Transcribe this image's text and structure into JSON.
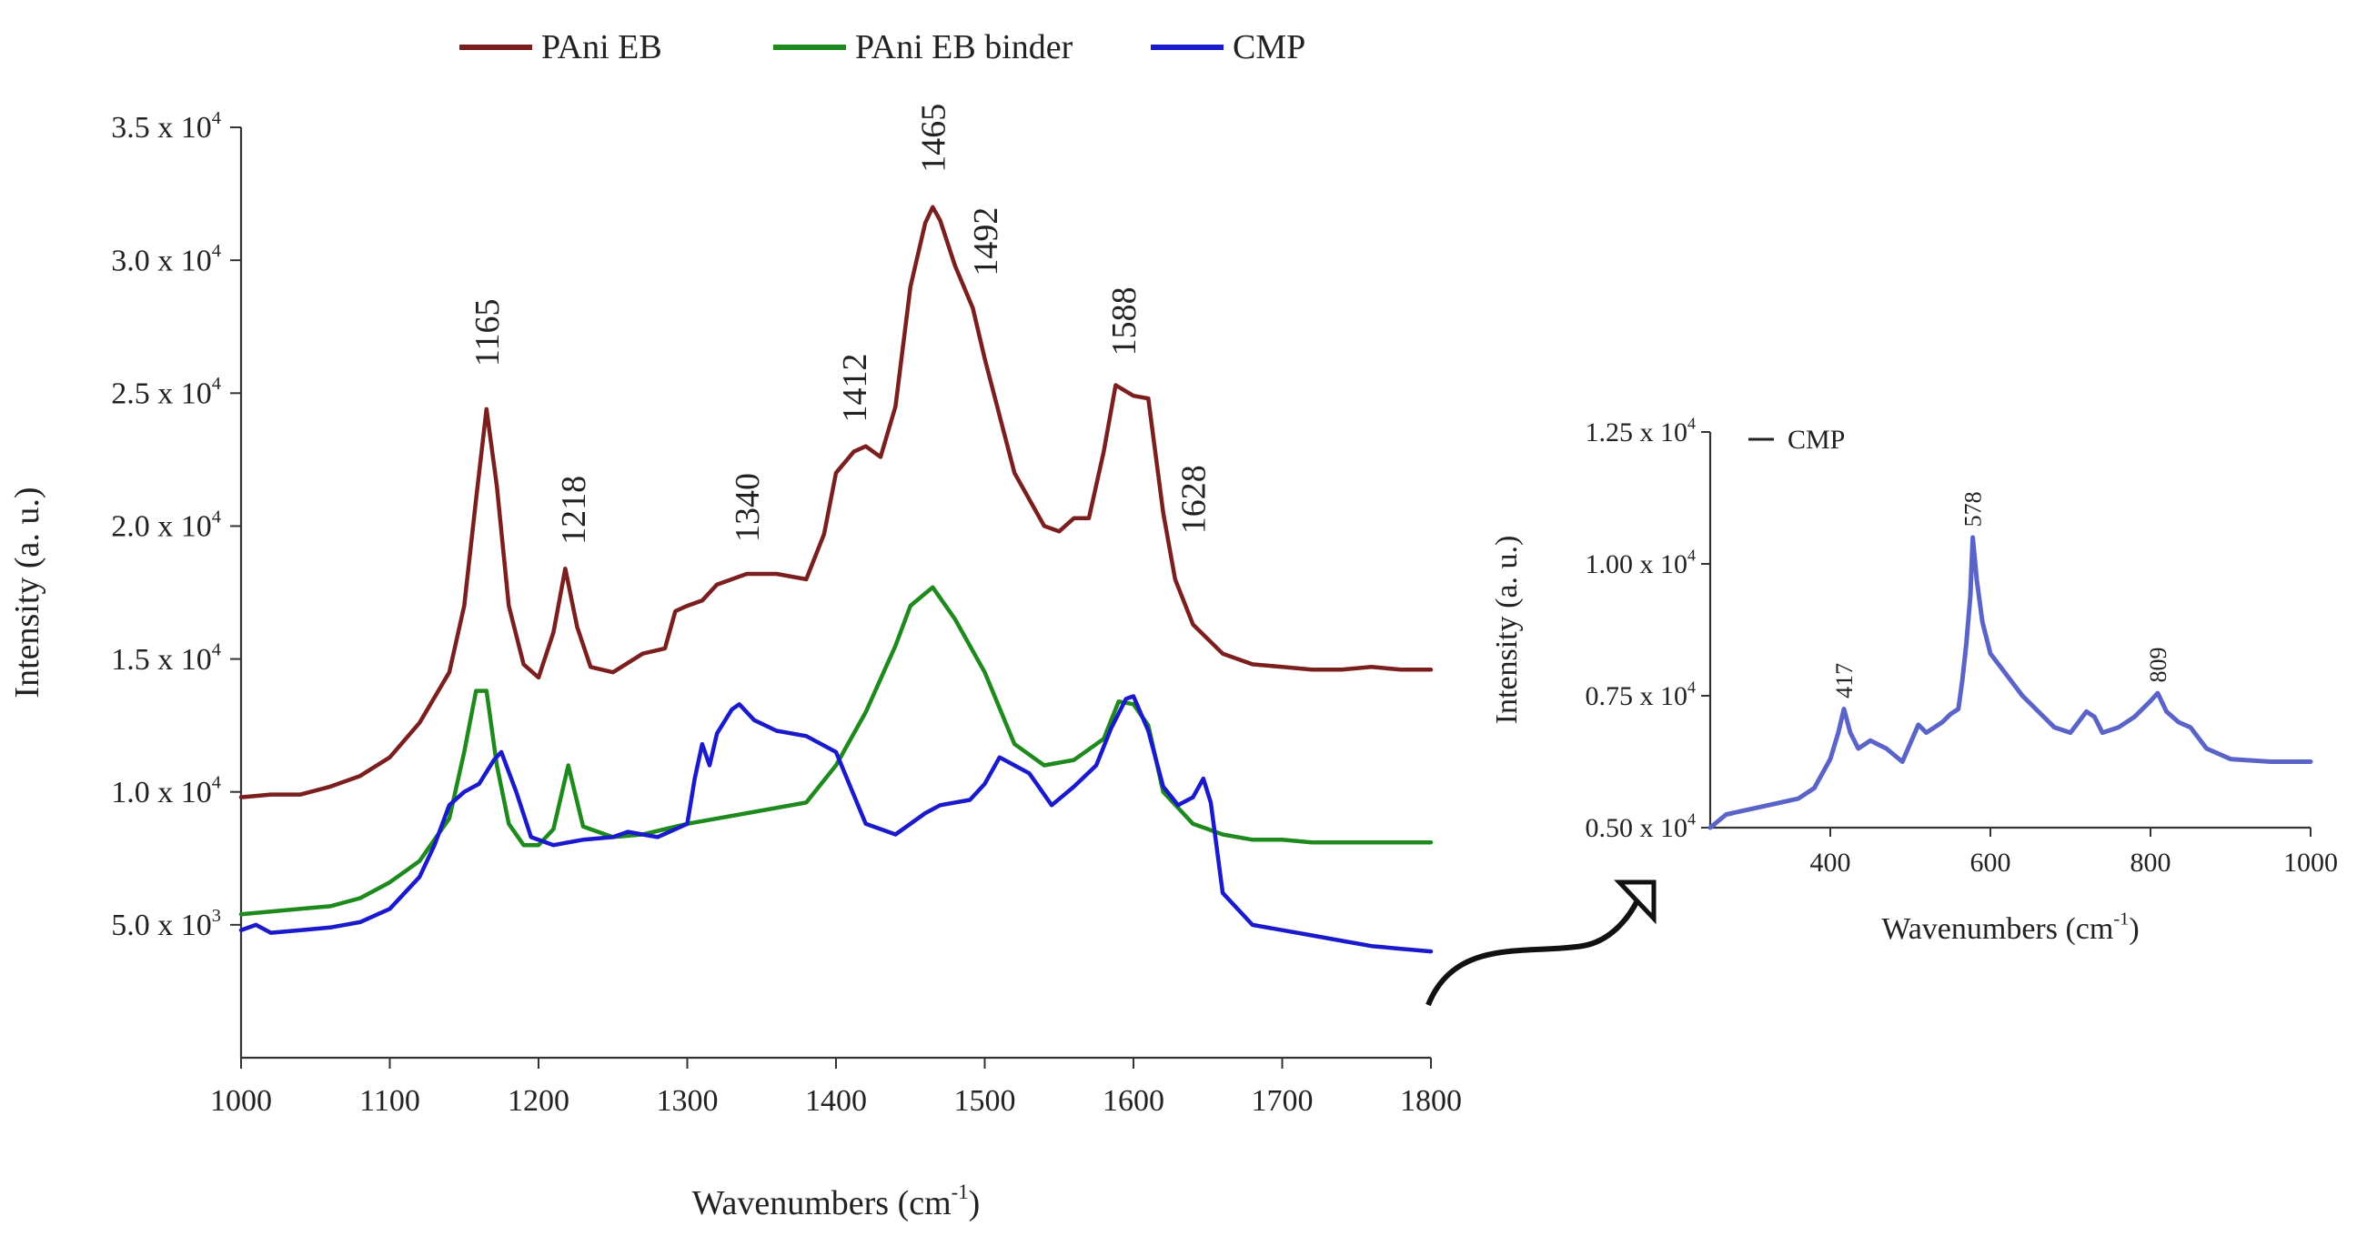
{
  "chart_data": [
    {
      "type": "line",
      "xlabel": "Wavenumbers (cm",
      "xlabel_sup": "-1",
      "xlabel_suffix": ")",
      "ylabel": "Intensity (a. u.)",
      "xlim": [
        1000,
        1800
      ],
      "ylim": [
        0,
        35000
      ],
      "xticks": [
        1000,
        1100,
        1200,
        1300,
        1400,
        1500,
        1600,
        1700,
        1800
      ],
      "yticks": [
        {
          "value": 5000,
          "mant": "5.0 x 10",
          "exp": "3"
        },
        {
          "value": 10000,
          "mant": "1.0 x 10",
          "exp": "4"
        },
        {
          "value": 15000,
          "mant": "1.5 x 10",
          "exp": "4"
        },
        {
          "value": 20000,
          "mant": "2.0 x 10",
          "exp": "4"
        },
        {
          "value": 25000,
          "mant": "2.5 x 10",
          "exp": "4"
        },
        {
          "value": 30000,
          "mant": "3.0 x 10",
          "exp": "4"
        },
        {
          "value": 35000,
          "mant": "3.5 x 10",
          "exp": "4"
        }
      ],
      "legend_position": "top",
      "series": [
        {
          "name": "PAni EB",
          "color": "#7b1e1e",
          "x": [
            1000,
            1020,
            1040,
            1060,
            1080,
            1100,
            1120,
            1140,
            1150,
            1158,
            1165,
            1172,
            1180,
            1190,
            1200,
            1210,
            1218,
            1226,
            1235,
            1250,
            1270,
            1285,
            1292,
            1300,
            1310,
            1320,
            1340,
            1360,
            1380,
            1392,
            1400,
            1412,
            1420,
            1430,
            1440,
            1450,
            1460,
            1465,
            1470,
            1480,
            1492,
            1500,
            1520,
            1540,
            1550,
            1560,
            1570,
            1580,
            1588,
            1600,
            1610,
            1620,
            1628,
            1640,
            1660,
            1680,
            1700,
            1720,
            1740,
            1760,
            1780,
            1800
          ],
          "y": [
            9800,
            9900,
            9900,
            10200,
            10600,
            11300,
            12600,
            14500,
            17000,
            21000,
            24400,
            21500,
            17000,
            14800,
            14300,
            16000,
            18400,
            16200,
            14700,
            14500,
            15200,
            15400,
            16800,
            17000,
            17200,
            17800,
            18200,
            18200,
            18000,
            19700,
            22000,
            22800,
            23000,
            22600,
            24500,
            29000,
            31400,
            32000,
            31500,
            29800,
            28200,
            26300,
            22000,
            20000,
            19800,
            20300,
            20300,
            22800,
            25300,
            24900,
            24800,
            20500,
            18000,
            16300,
            15200,
            14800,
            14700,
            14600,
            14600,
            14700,
            14600,
            14600
          ]
        },
        {
          "name": "PAni EB binder",
          "color": "#1e8a1e",
          "x": [
            1000,
            1020,
            1040,
            1060,
            1080,
            1100,
            1120,
            1140,
            1150,
            1158,
            1165,
            1172,
            1180,
            1190,
            1200,
            1210,
            1220,
            1230,
            1240,
            1250,
            1270,
            1300,
            1340,
            1380,
            1400,
            1420,
            1440,
            1450,
            1465,
            1480,
            1500,
            1520,
            1540,
            1560,
            1580,
            1590,
            1600,
            1610,
            1620,
            1640,
            1660,
            1680,
            1700,
            1720,
            1740,
            1760,
            1780,
            1800
          ],
          "y": [
            5400,
            5500,
            5600,
            5700,
            6000,
            6600,
            7400,
            9000,
            11500,
            13800,
            13800,
            11000,
            8800,
            8000,
            8000,
            8600,
            11000,
            8700,
            8500,
            8300,
            8400,
            8800,
            9200,
            9600,
            11000,
            13000,
            15500,
            17000,
            17700,
            16500,
            14500,
            11800,
            11000,
            11200,
            12000,
            13400,
            13300,
            12500,
            10000,
            8800,
            8400,
            8200,
            8200,
            8100,
            8100,
            8100,
            8100,
            8100
          ]
        },
        {
          "name": "CMP",
          "color": "#1a1acc",
          "x": [
            1000,
            1010,
            1020,
            1040,
            1060,
            1080,
            1100,
            1120,
            1130,
            1140,
            1150,
            1160,
            1170,
            1175,
            1185,
            1195,
            1210,
            1230,
            1250,
            1260,
            1280,
            1300,
            1305,
            1310,
            1315,
            1320,
            1330,
            1335,
            1345,
            1360,
            1380,
            1400,
            1420,
            1440,
            1460,
            1470,
            1490,
            1500,
            1510,
            1520,
            1530,
            1545,
            1560,
            1575,
            1585,
            1595,
            1600,
            1610,
            1620,
            1630,
            1640,
            1647,
            1652,
            1660,
            1680,
            1700,
            1720,
            1740,
            1760,
            1780,
            1800
          ],
          "y": [
            4800,
            5000,
            4700,
            4800,
            4900,
            5100,
            5600,
            6800,
            8000,
            9500,
            10000,
            10300,
            11200,
            11500,
            10000,
            8300,
            8000,
            8200,
            8300,
            8500,
            8300,
            8800,
            10500,
            11800,
            11000,
            12200,
            13100,
            13300,
            12700,
            12300,
            12100,
            11500,
            8800,
            8400,
            9200,
            9500,
            9700,
            10300,
            11300,
            11000,
            10700,
            9500,
            10200,
            11000,
            12400,
            13500,
            13600,
            12300,
            10200,
            9500,
            9800,
            10500,
            9600,
            6200,
            5000,
            4800,
            4600,
            4400,
            4200,
            4100,
            4000
          ]
        }
      ],
      "annotations": [
        {
          "text": "1165",
          "x": 1165,
          "y": 26000
        },
        {
          "text": "1218",
          "x": 1223,
          "y": 19300
        },
        {
          "text": "1340",
          "x": 1340,
          "y": 19400
        },
        {
          "text": "1412",
          "x": 1412,
          "y": 23900
        },
        {
          "text": "1465",
          "x": 1465,
          "y": 33300
        },
        {
          "text": "1492",
          "x": 1500,
          "y": 29400
        },
        {
          "text": "1588",
          "x": 1593,
          "y": 26400
        },
        {
          "text": "1628",
          "x": 1640,
          "y": 19700
        }
      ]
    },
    {
      "type": "line",
      "xlabel": "Wavenumbers (cm",
      "xlabel_sup": "-1",
      "xlabel_suffix": ")",
      "ylabel": "Intensity (a. u.)",
      "xlim": [
        250,
        1000
      ],
      "ylim": [
        5000,
        12500
      ],
      "xticks": [
        400,
        600,
        800,
        1000
      ],
      "yticks": [
        {
          "value": 5000,
          "mant": "0.50 x 10",
          "exp": "4"
        },
        {
          "value": 7500,
          "mant": "0.75 x 10",
          "exp": "4"
        },
        {
          "value": 10000,
          "mant": "1.00 x 10",
          "exp": "4"
        },
        {
          "value": 12500,
          "mant": "1.25 x 10",
          "exp": "4"
        }
      ],
      "legend_position": "top-left",
      "series": [
        {
          "name": "CMP",
          "color": "#5a64c8",
          "x": [
            250,
            270,
            300,
            330,
            360,
            380,
            400,
            410,
            417,
            425,
            435,
            450,
            470,
            490,
            500,
            510,
            520,
            530,
            540,
            550,
            560,
            565,
            570,
            575,
            578,
            583,
            590,
            600,
            620,
            640,
            660,
            680,
            700,
            720,
            730,
            740,
            760,
            780,
            800,
            809,
            820,
            835,
            850,
            870,
            900,
            950,
            1000
          ],
          "y": [
            5000,
            5250,
            5350,
            5450,
            5550,
            5750,
            6300,
            6800,
            7250,
            6800,
            6500,
            6650,
            6500,
            6250,
            6600,
            6950,
            6800,
            6900,
            7000,
            7150,
            7250,
            7800,
            8500,
            9400,
            10500,
            9700,
            8900,
            8300,
            7900,
            7500,
            7200,
            6900,
            6800,
            7200,
            7100,
            6800,
            6900,
            7100,
            7400,
            7550,
            7200,
            7000,
            6900,
            6500,
            6300,
            6250,
            6250
          ]
        }
      ],
      "annotations": [
        {
          "text": "417",
          "x": 417,
          "y": 7450
        },
        {
          "text": "578",
          "x": 578,
          "y": 10700
        },
        {
          "text": "809",
          "x": 809,
          "y": 7750
        }
      ]
    }
  ]
}
